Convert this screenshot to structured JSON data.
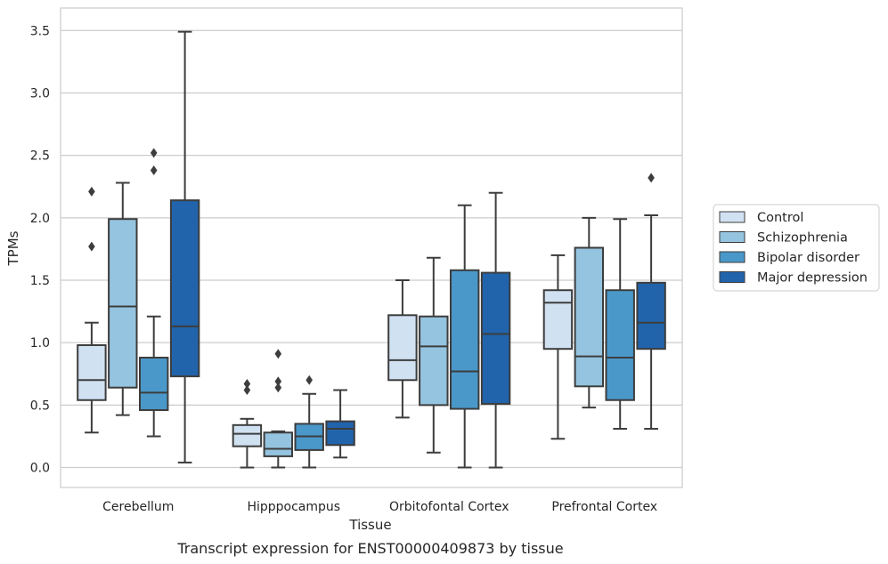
{
  "chart_data": {
    "type": "box",
    "title": "",
    "caption": "Transcript expression for ENST00000409873 by tissue",
    "xlabel": "Tissue",
    "ylabel": "TPMs",
    "ylim": [
      -0.16,
      3.68
    ],
    "yticks": [
      0.0,
      0.5,
      1.0,
      1.5,
      2.0,
      2.5,
      3.0,
      3.5
    ],
    "ytick_labels": [
      "0.0",
      "0.5",
      "1.0",
      "1.5",
      "2.0",
      "2.5",
      "3.0",
      "3.5"
    ],
    "grid": "horizontal",
    "legend_position": "right",
    "categories": [
      "Cerebellum",
      "Hipppocampus",
      "Orbitofontal Cortex",
      "Prefrontal Cortex"
    ],
    "series": [
      {
        "name": "Control",
        "color": "#d0e1f2",
        "boxes": [
          {
            "whislo": 0.28,
            "q1": 0.54,
            "med": 0.7,
            "q3": 0.98,
            "whishi": 1.16,
            "fliers": [
              1.77,
              2.21
            ]
          },
          {
            "whislo": 0.0,
            "q1": 0.17,
            "med": 0.27,
            "q3": 0.34,
            "whishi": 0.39,
            "fliers": [
              0.62,
              0.67
            ]
          },
          {
            "whislo": 0.4,
            "q1": 0.7,
            "med": 0.86,
            "q3": 1.22,
            "whishi": 1.5,
            "fliers": []
          },
          {
            "whislo": 0.23,
            "q1": 0.95,
            "med": 1.32,
            "q3": 1.42,
            "whishi": 1.7,
            "fliers": []
          }
        ]
      },
      {
        "name": "Schizophrenia",
        "color": "#94c4df",
        "boxes": [
          {
            "whislo": 0.42,
            "q1": 0.64,
            "med": 1.29,
            "q3": 1.99,
            "whishi": 2.28,
            "fliers": []
          },
          {
            "whislo": 0.0,
            "q1": 0.09,
            "med": 0.15,
            "q3": 0.28,
            "whishi": 0.29,
            "fliers": [
              0.64,
              0.69,
              0.91
            ]
          },
          {
            "whislo": 0.12,
            "q1": 0.5,
            "med": 0.97,
            "q3": 1.21,
            "whishi": 1.68,
            "fliers": []
          },
          {
            "whislo": 0.48,
            "q1": 0.65,
            "med": 0.89,
            "q3": 1.76,
            "whishi": 2.0,
            "fliers": []
          }
        ]
      },
      {
        "name": "Bipolar disorder",
        "color": "#4a98c9",
        "boxes": [
          {
            "whislo": 0.25,
            "q1": 0.46,
            "med": 0.6,
            "q3": 0.88,
            "whishi": 1.21,
            "fliers": [
              2.38,
              2.52
            ]
          },
          {
            "whislo": 0.0,
            "q1": 0.14,
            "med": 0.25,
            "q3": 0.35,
            "whishi": 0.59,
            "fliers": [
              0.7
            ]
          },
          {
            "whislo": 0.0,
            "q1": 0.47,
            "med": 0.77,
            "q3": 1.58,
            "whishi": 2.1,
            "fliers": []
          },
          {
            "whislo": 0.31,
            "q1": 0.54,
            "med": 0.88,
            "q3": 1.42,
            "whishi": 1.99,
            "fliers": []
          }
        ]
      },
      {
        "name": "Major depression",
        "color": "#2164ab",
        "boxes": [
          {
            "whislo": 0.04,
            "q1": 0.73,
            "med": 1.13,
            "q3": 2.14,
            "whishi": 3.49,
            "fliers": []
          },
          {
            "whislo": 0.08,
            "q1": 0.18,
            "med": 0.31,
            "q3": 0.37,
            "whishi": 0.62,
            "fliers": []
          },
          {
            "whislo": 0.0,
            "q1": 0.51,
            "med": 1.07,
            "q3": 1.56,
            "whishi": 2.2,
            "fliers": []
          },
          {
            "whislo": 0.31,
            "q1": 0.95,
            "med": 1.16,
            "q3": 1.48,
            "whishi": 2.02,
            "fliers": [
              2.32
            ]
          }
        ]
      }
    ]
  }
}
